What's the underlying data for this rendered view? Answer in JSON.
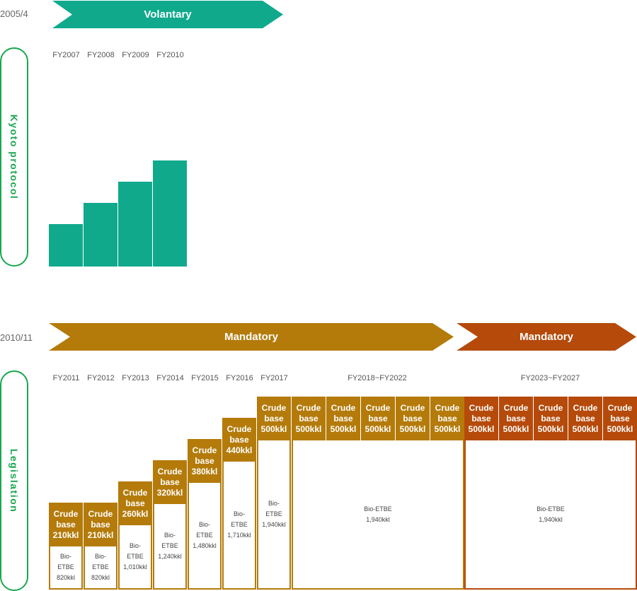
{
  "colors": {
    "voluntary": "#10a98c",
    "mandatory_1": "#b47b0a",
    "mandatory_2": "#b54a0a",
    "legislation_border": "#17a84f"
  },
  "voluntary": {
    "date": "2005/4",
    "label": "Volantary"
  },
  "kyoto": {
    "label": "Kyoto protocol",
    "years": [
      "FY2007",
      "FY2008",
      "FY2009",
      "FY2010"
    ],
    "levels": [
      1,
      2,
      3,
      4
    ]
  },
  "mandatory": {
    "date": "2010/11",
    "label_1": "Mandatory",
    "label_2": "Mandatory"
  },
  "legislation": {
    "label": "Legislation",
    "years": [
      "FY2011",
      "FY2012",
      "FY2013",
      "FY2014",
      "FY2015",
      "FY2016",
      "FY2017"
    ],
    "range_1": "FY2018~FY2022",
    "range_2": "FY2023~FY2027",
    "crude_line1": "Crude",
    "crude_line2": "base",
    "crude_values": [
      "210kkl",
      "210kkl",
      "260kkl",
      "320kkl",
      "380kkl",
      "440kkl",
      "500kkl",
      "500kkl",
      "500kkl",
      "500kkl",
      "500kkl",
      "500kkl",
      "500kkl",
      "500kkl",
      "500kkl",
      "500kkl",
      "500kkl"
    ],
    "etbe_short_1": "Bio-",
    "etbe_short_2": "ETBE",
    "etbe_values": [
      "820kkl",
      "820kkl",
      "1,010kkl",
      "1,240kkl",
      "1,480kkl",
      "1,710kkl",
      "1,940kkl"
    ],
    "etbe_long": "Bio-ETBE",
    "etbe_range_1": "1,940kkl",
    "etbe_range_2": "1,940kkl"
  }
}
